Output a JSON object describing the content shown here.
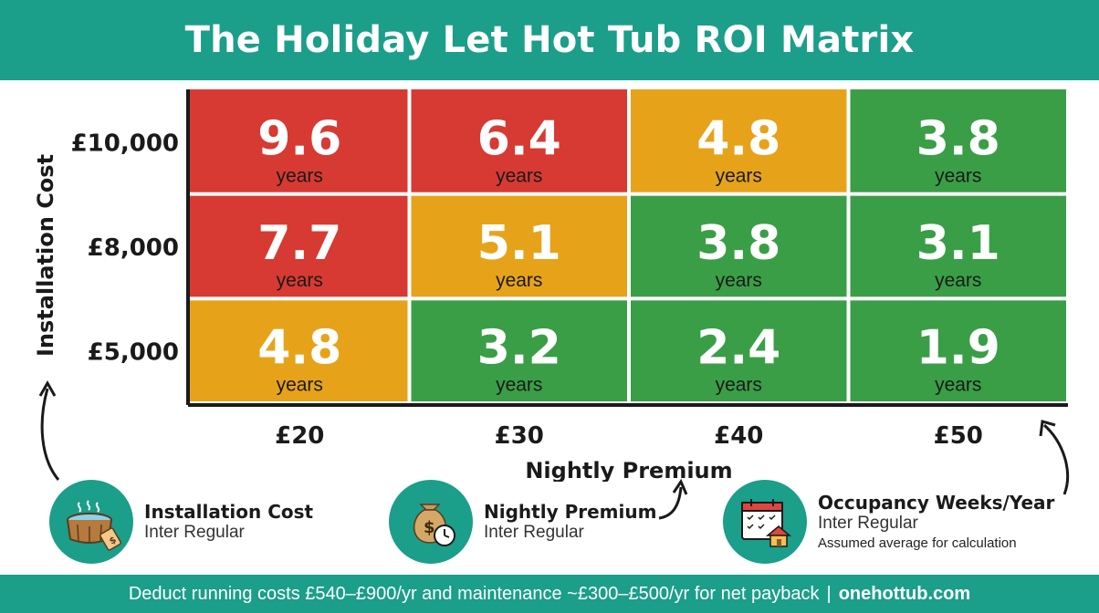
{
  "title": "The Holiday Let Hot Tub ROI Matrix",
  "colors": {
    "brand": "#1b9e8a",
    "red": "#d63a32",
    "amber": "#e6a31a",
    "green": "#3a9e47"
  },
  "chart_data": {
    "type": "heatmap",
    "xlabel": "Nightly Premium",
    "ylabel": "Installation Cost",
    "x_categories": [
      "£20",
      "£30",
      "£40",
      "£50"
    ],
    "y_categories": [
      "£10,000",
      "£8,000",
      "£5,000"
    ],
    "unit": "years",
    "values": [
      [
        9.6,
        6.4,
        4.8,
        3.8
      ],
      [
        7.7,
        5.1,
        3.8,
        3.1
      ],
      [
        4.8,
        3.2,
        2.4,
        1.9
      ]
    ],
    "cell_colors": [
      [
        "red",
        "red",
        "amber",
        "green"
      ],
      [
        "red",
        "amber",
        "green",
        "green"
      ],
      [
        "amber",
        "green",
        "green",
        "green"
      ]
    ]
  },
  "legend": [
    {
      "title": "Installation Cost",
      "subtitle": "Inter Regular",
      "icon": "hot-tub-icon"
    },
    {
      "title": "Nightly Premium",
      "subtitle": "Inter Regular",
      "icon": "money-bag-clock-icon"
    },
    {
      "title": "Occupancy Weeks/Year",
      "subtitle": "Inter Regular",
      "note": "Assumed average for calculation",
      "icon": "calendar-house-icon"
    }
  ],
  "footer": {
    "text": "Deduct running costs £540–£900/yr and maintenance ~£300–£500/yr for net payback",
    "separator": "|",
    "site": "onehottub.com"
  }
}
